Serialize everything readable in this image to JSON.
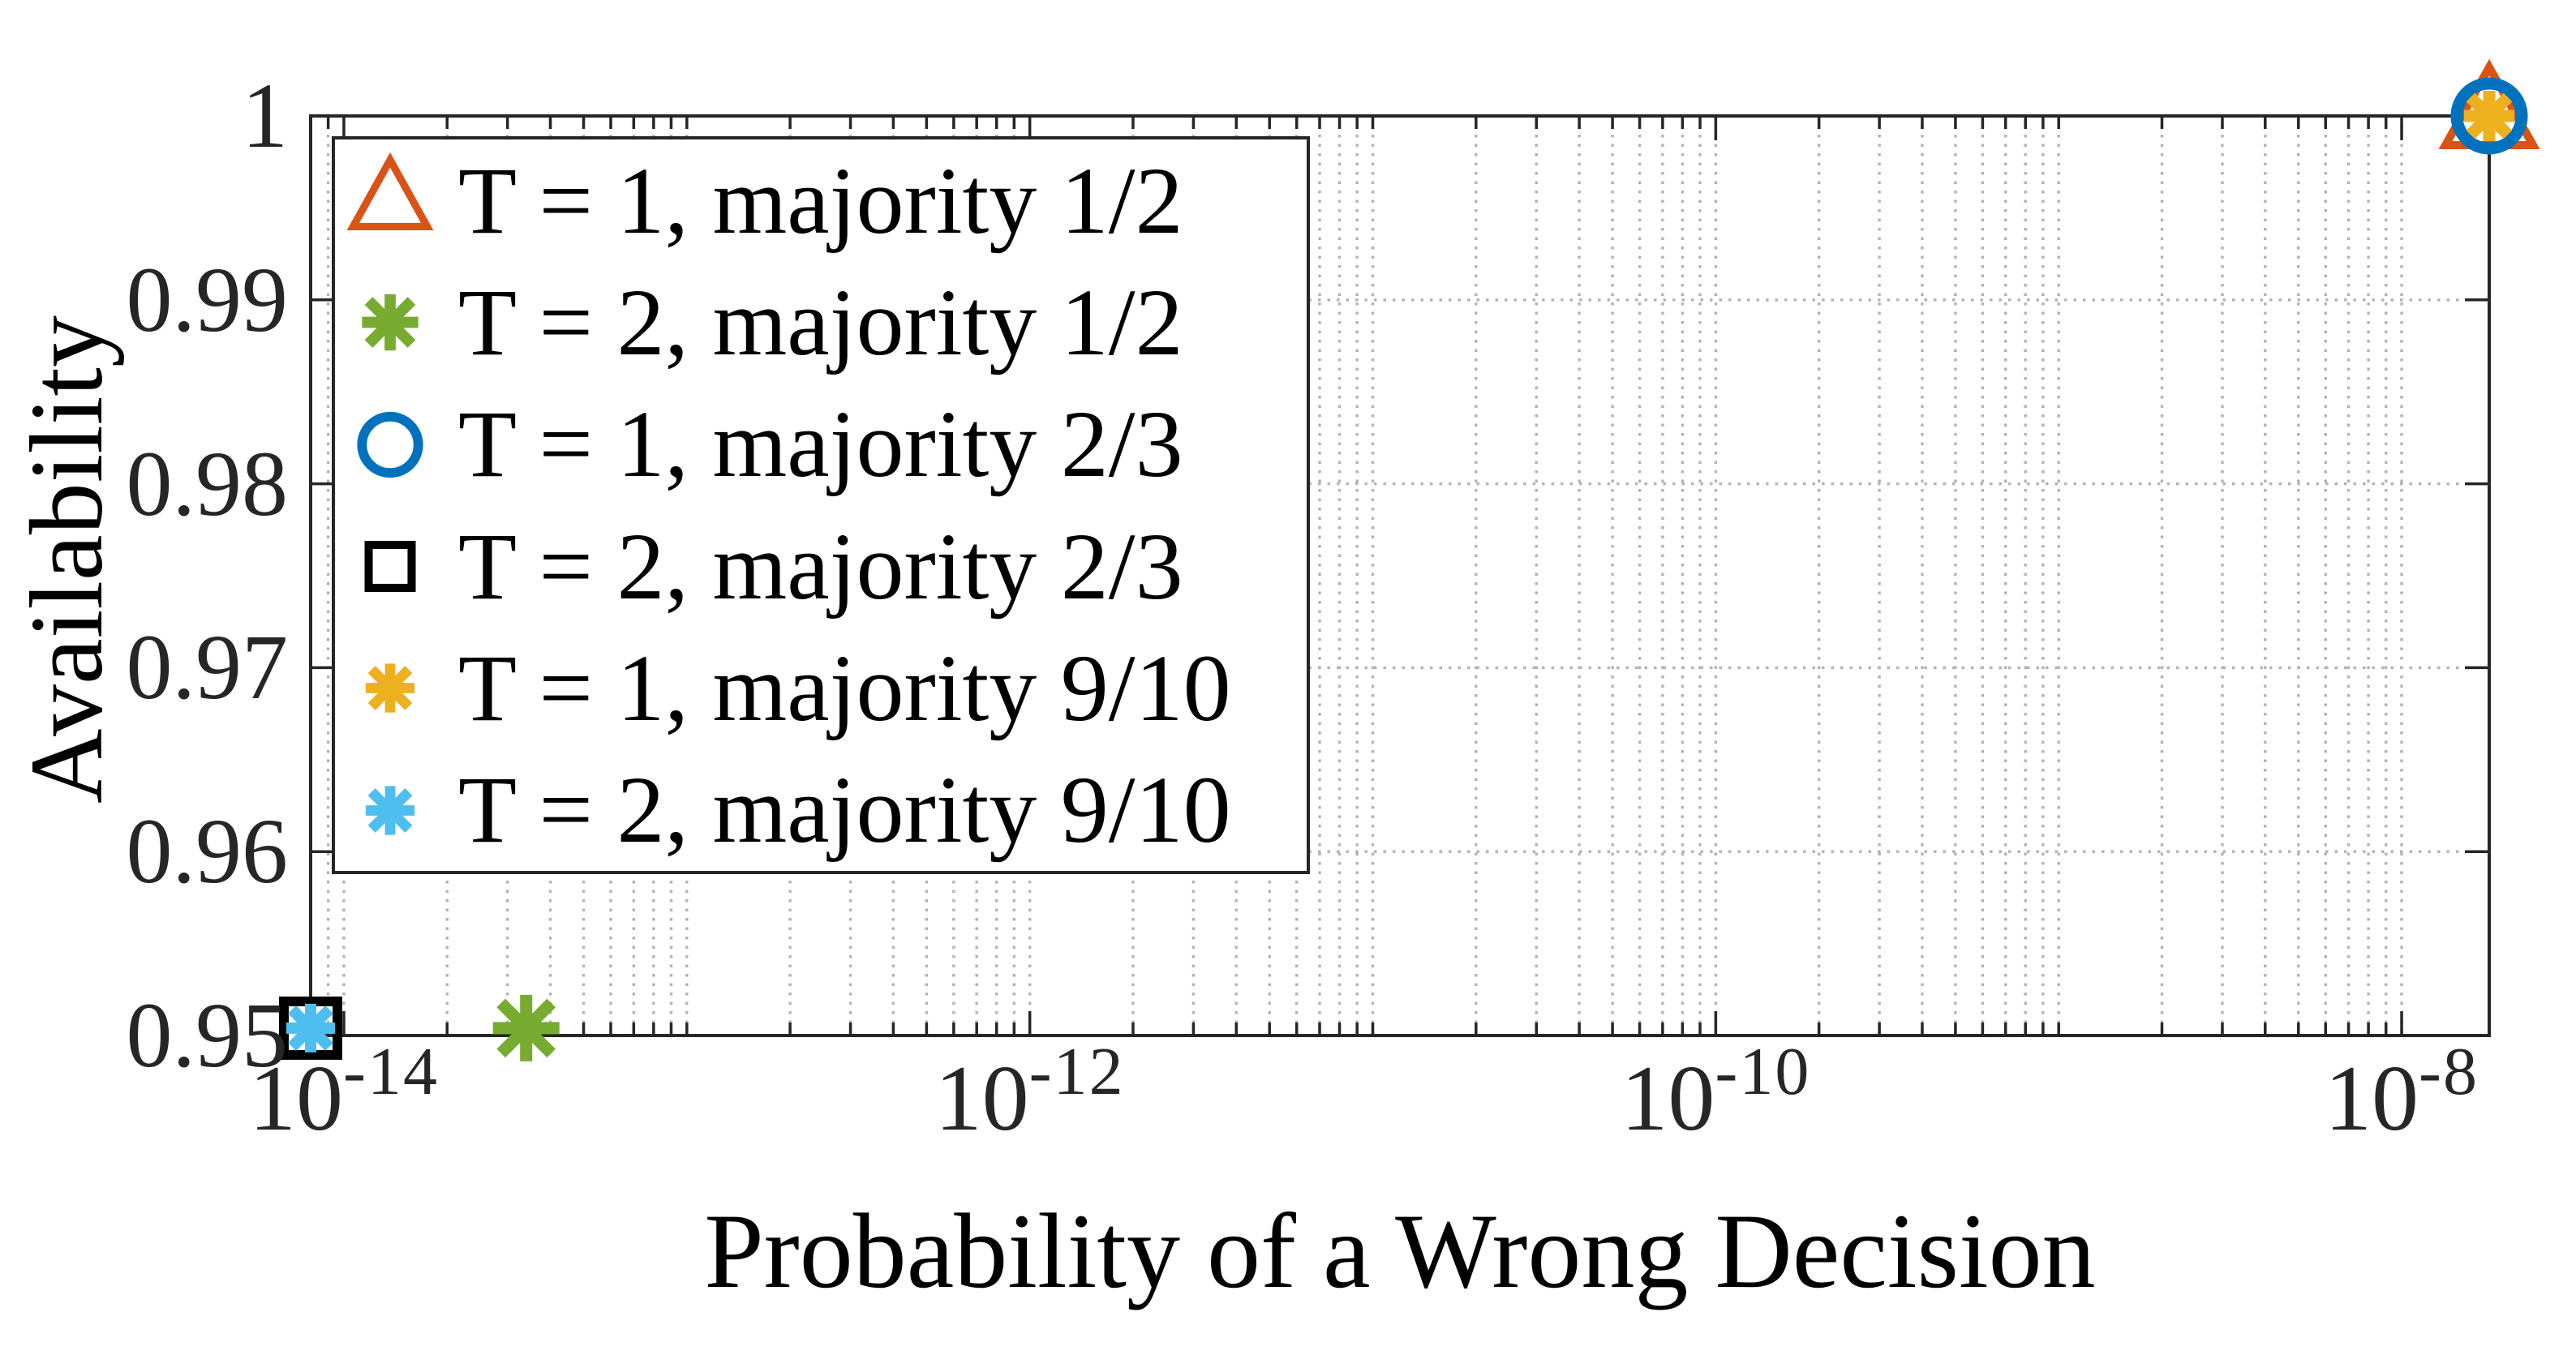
{
  "figure": {
    "background": "#ffffff"
  },
  "colors": {
    "axis": "#262626",
    "tick_text": "#262626",
    "label_text": "#000000",
    "grid": "#b3b3b3",
    "legend_border": "#262626",
    "legend_background": "#ffffff"
  },
  "chart_data": {
    "type": "scatter",
    "title": "",
    "xlabel": "Probability of a Wrong Decision",
    "ylabel": "Availability",
    "xscale": "log10",
    "yscale": "linear",
    "xlim": [
      8e-15,
      1.8e-08
    ],
    "ylim": [
      0.95,
      1.0
    ],
    "grid": true,
    "x_minor_grid": true,
    "grid_style": "dotted",
    "box": true,
    "xticks": [
      {
        "base": "10",
        "exp": "-14",
        "value": 1e-14
      },
      {
        "base": "10",
        "exp": "-12",
        "value": 1e-12
      },
      {
        "base": "10",
        "exp": "-10",
        "value": 1e-10
      },
      {
        "base": "10",
        "exp": "-8",
        "value": 1e-08
      }
    ],
    "yticks": [
      {
        "label": "1",
        "value": 1.0
      },
      {
        "label": "0.99",
        "value": 0.99
      },
      {
        "label": "0.98",
        "value": 0.98
      },
      {
        "label": "0.97",
        "value": 0.97
      },
      {
        "label": "0.96",
        "value": 0.96
      },
      {
        "label": "0.95",
        "value": 0.95
      }
    ],
    "legend": {
      "location": "northwest",
      "border_color": "#262626"
    },
    "series": [
      {
        "name": "T = 1, majority 1/2",
        "marker": "triangle-up",
        "color": "#D95319",
        "points": [
          {
            "x": 1.8e-08,
            "y": 1.0
          }
        ]
      },
      {
        "name": "T = 2, majority 1/2",
        "marker": "asterisk",
        "color": "#77AC30",
        "points": [
          {
            "x": 3.4e-14,
            "y": 0.9504
          }
        ]
      },
      {
        "name": "T = 1, majority 2/3",
        "marker": "circle",
        "color": "#0072BD",
        "points": [
          {
            "x": 1.8e-08,
            "y": 1.0
          }
        ]
      },
      {
        "name": "T = 2, majority 2/3",
        "marker": "square",
        "color": "#000000",
        "points": [
          {
            "x": 8e-15,
            "y": 0.9504
          }
        ]
      },
      {
        "name": "T = 1, majority 9/10",
        "marker": "asterisk",
        "color": "#EDB120",
        "points": [
          {
            "x": 1.8e-08,
            "y": 1.0
          }
        ]
      },
      {
        "name": "T = 2, majority 9/10",
        "marker": "asterisk",
        "color": "#4DBEEE",
        "points": [
          {
            "x": 8e-15,
            "y": 0.9504
          }
        ]
      }
    ]
  }
}
